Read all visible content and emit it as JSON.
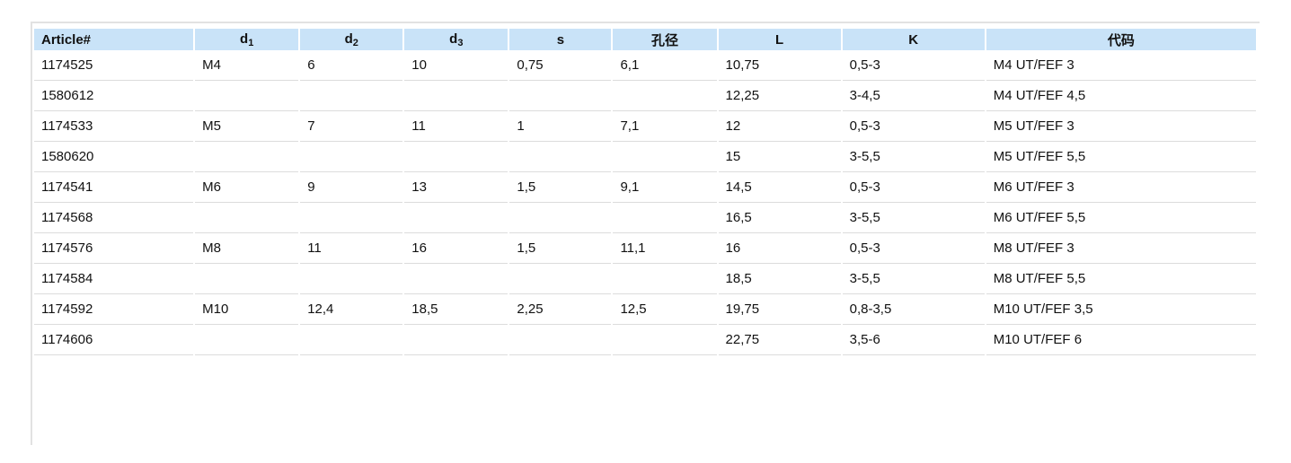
{
  "table": {
    "header": [
      "Article#",
      {
        "text": "d",
        "sub": "1"
      },
      {
        "text": "d",
        "sub": "2"
      },
      {
        "text": "d",
        "sub": "3"
      },
      "s",
      "孔径",
      "L",
      "K",
      "代码"
    ],
    "rows": [
      [
        "1174525",
        "M4",
        "6",
        "10",
        "0,75",
        "6,1",
        "10,75",
        "0,5-3",
        "M4 UT/FEF 3"
      ],
      [
        "1580612",
        null,
        null,
        null,
        null,
        null,
        "12,25",
        "3-4,5",
        "M4 UT/FEF 4,5"
      ],
      [
        "1174533",
        "M5",
        "7",
        "11",
        "1",
        "7,1",
        "12",
        "0,5-3",
        "M5 UT/FEF 3"
      ],
      [
        "1580620",
        null,
        null,
        null,
        null,
        null,
        "15",
        "3-5,5",
        "M5 UT/FEF 5,5"
      ],
      [
        "1174541",
        "M6",
        "9",
        "13",
        "1,5",
        "9,1",
        "14,5",
        "0,5-3",
        "M6 UT/FEF 3"
      ],
      [
        "1174568",
        null,
        null,
        null,
        null,
        null,
        "16,5",
        "3-5,5",
        "M6 UT/FEF 5,5"
      ],
      [
        "1174576",
        "M8",
        "11",
        "16",
        "1,5",
        "11,1",
        "16",
        "0,5-3",
        "M8 UT/FEF 3"
      ],
      [
        "1174584",
        null,
        null,
        null,
        null,
        null,
        "18,5",
        "3-5,5",
        "M8 UT/FEF 5,5"
      ],
      [
        "1174592",
        "M10",
        "12,4",
        "18,5",
        "2,25",
        "12,5",
        "19,75",
        "0,8-3,5",
        "M10 UT/FEF 3,5"
      ],
      [
        "1174606",
        null,
        null,
        null,
        null,
        null,
        "22,75",
        "3,5-6",
        "M10 UT/FEF 6"
      ]
    ]
  }
}
